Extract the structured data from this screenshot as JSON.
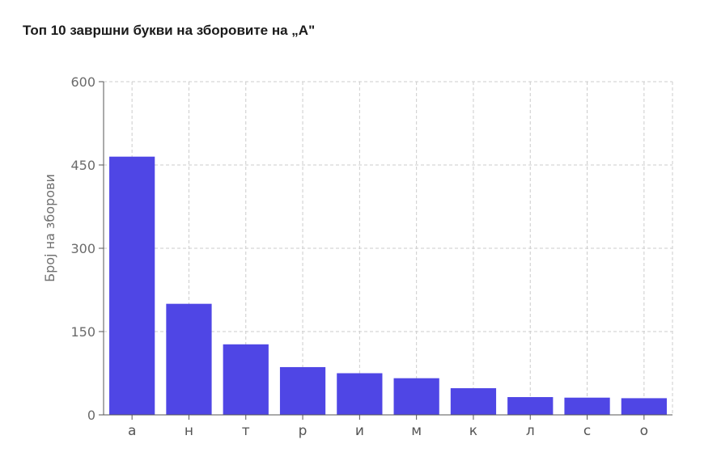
{
  "chart_data": {
    "type": "bar",
    "title": "Топ 10 завршни букви на зборовите на „А\"",
    "xlabel": "",
    "ylabel": "Број на зборови",
    "categories": [
      "а",
      "н",
      "т",
      "р",
      "и",
      "м",
      "к",
      "л",
      "с",
      "о"
    ],
    "values": [
      465,
      200,
      127,
      86,
      75,
      66,
      48,
      32,
      31,
      30
    ],
    "ylim": [
      0,
      600
    ],
    "yticks": [
      0,
      150,
      300,
      450,
      600
    ],
    "grid": true,
    "bar_color": "#4f46e5",
    "grid_color": "#cccccc"
  }
}
